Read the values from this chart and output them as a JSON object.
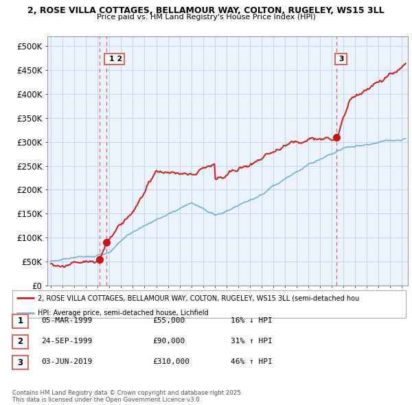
{
  "title_line1": "2, ROSE VILLA COTTAGES, BELLAMOUR WAY, COLTON, RUGELEY, WS15 3LL",
  "title_line2": "Price paid vs. HM Land Registry's House Price Index (HPI)",
  "ylabel_ticks": [
    "£0",
    "£50K",
    "£100K",
    "£150K",
    "£200K",
    "£250K",
    "£300K",
    "£350K",
    "£400K",
    "£450K",
    "£500K"
  ],
  "ytick_values": [
    0,
    50000,
    100000,
    150000,
    200000,
    250000,
    300000,
    350000,
    400000,
    450000,
    500000
  ],
  "ylim": [
    0,
    520000
  ],
  "xlim_start": 1994.7,
  "xlim_end": 2025.5,
  "hpi_color": "#7ab4d8",
  "price_color": "#cc2222",
  "dashed_line_color": "#dd6666",
  "marker_color": "#cc1111",
  "background_color": "#ffffff",
  "chart_bg_color": "#eaf3fb",
  "grid_color": "#c8d8e8",
  "transactions": [
    {
      "id": 1,
      "date": 1999.18,
      "price": 55000,
      "label": "1"
    },
    {
      "id": 2,
      "date": 1999.73,
      "price": 90000,
      "label": "2"
    },
    {
      "id": 3,
      "date": 2019.42,
      "price": 310000,
      "label": "3"
    }
  ],
  "legend_property_label": "2, ROSE VILLA COTTAGES, BELLAMOUR WAY, COLTON, RUGELEY, WS15 3LL (semi-detached hou",
  "legend_hpi_label": "HPI: Average price, semi-detached house, Lichfield",
  "table_rows": [
    {
      "id": 1,
      "date": "05-MAR-1999",
      "price": "£55,000",
      "pct": "16% ↓ HPI"
    },
    {
      "id": 2,
      "date": "24-SEP-1999",
      "price": "£90,000",
      "pct": "31% ↑ HPI"
    },
    {
      "id": 3,
      "date": "03-JUN-2019",
      "price": "£310,000",
      "pct": "46% ↑ HPI"
    }
  ],
  "footnote": "Contains HM Land Registry data © Crown copyright and database right 2025.\nThis data is licensed under the Open Government Licence v3.0."
}
